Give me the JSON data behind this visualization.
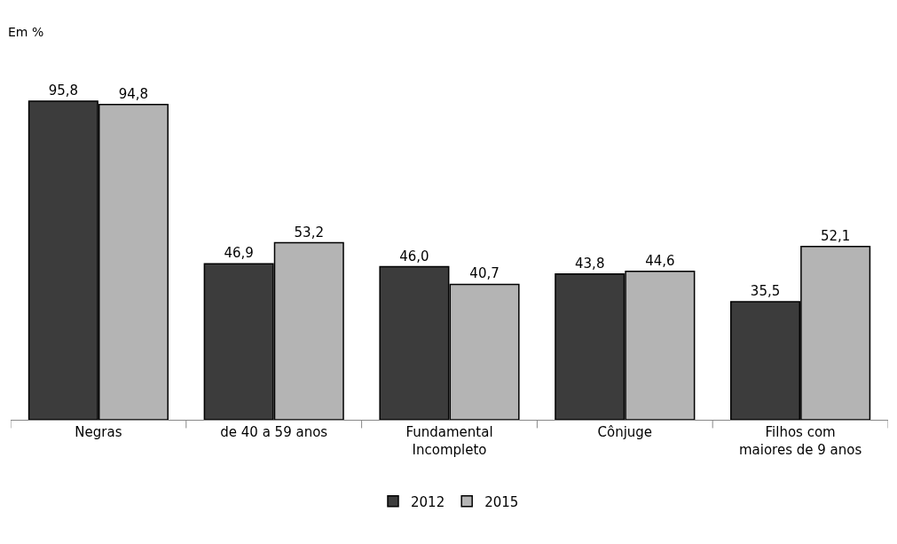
{
  "chart_data": {
    "type": "bar",
    "ylabel": "Em %",
    "categories": [
      "Negras",
      "de 40 a 59 anos",
      "Fundamental\nIncompleto",
      "Cônjuge",
      "Filhos com\nmaiores de 9 anos"
    ],
    "series": [
      {
        "name": "2012",
        "color": "#3c3c3c",
        "values": [
          95.8,
          46.9,
          46.0,
          43.8,
          35.5
        ],
        "value_labels": [
          "95,8",
          "46,9",
          "46,0",
          "43,8",
          "35,5"
        ]
      },
      {
        "name": "2015",
        "color": "#b4b4b4",
        "values": [
          94.8,
          53.2,
          40.7,
          44.6,
          52.1
        ],
        "value_labels": [
          "94,8",
          "53,2",
          "40,7",
          "44,6",
          "52,1"
        ]
      }
    ],
    "grid": false,
    "legend": "bottom",
    "tick_labels": "x"
  }
}
